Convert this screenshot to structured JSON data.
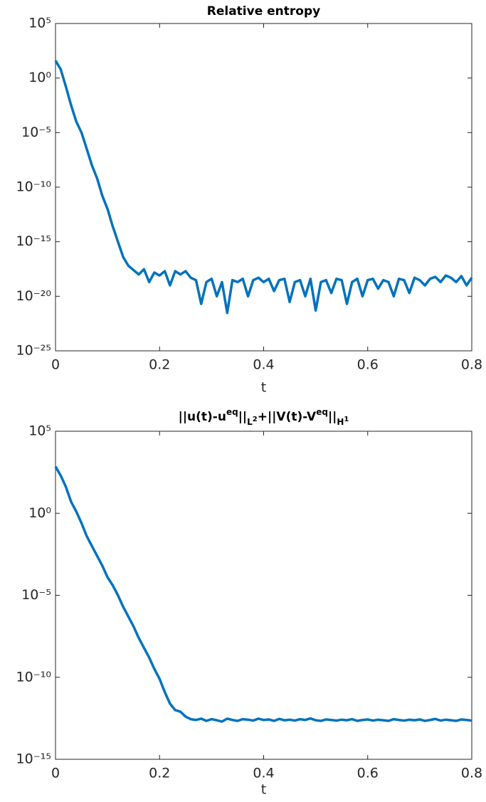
{
  "chart_data": [
    {
      "type": "line",
      "title": [
        "Relative entropy"
      ],
      "xlabel": "t",
      "ylog": true,
      "xlim": [
        0,
        0.8
      ],
      "xticks": [
        0,
        0.2,
        0.4,
        0.6,
        0.8
      ],
      "ylim": [
        1e-25,
        100000.0
      ],
      "yticks": [
        {
          "value": 1e-25,
          "label": "10⁻²⁵"
        },
        {
          "value": 1e-20,
          "label": "10⁻²⁰"
        },
        {
          "value": 1e-15,
          "label": "10⁻¹⁵"
        },
        {
          "value": 1e-10,
          "label": "10⁻¹⁰"
        },
        {
          "value": 1e-05,
          "label": "10⁻⁵"
        },
        {
          "value": 1,
          "label": "10⁰"
        },
        {
          "value": 100000.0,
          "label": "10⁵"
        }
      ],
      "series": [
        {
          "color": "#0072BD",
          "x": [
            0,
            0.01,
            0.02,
            0.03,
            0.04,
            0.05,
            0.06,
            0.07,
            0.08,
            0.09,
            0.1,
            0.11,
            0.12,
            0.13,
            0.14,
            0.15,
            0.16,
            0.17,
            0.18,
            0.19,
            0.2,
            0.21,
            0.22,
            0.23,
            0.24,
            0.25,
            0.26,
            0.27,
            0.28,
            0.29,
            0.3,
            0.31,
            0.32,
            0.33,
            0.34,
            0.35,
            0.36,
            0.37,
            0.38,
            0.39,
            0.4,
            0.41,
            0.42,
            0.43,
            0.44,
            0.45,
            0.46,
            0.47,
            0.48,
            0.49,
            0.5,
            0.51,
            0.52,
            0.53,
            0.54,
            0.55,
            0.56,
            0.57,
            0.58,
            0.59,
            0.6,
            0.61,
            0.62,
            0.63,
            0.64,
            0.65,
            0.66,
            0.67,
            0.68,
            0.69,
            0.7,
            0.71,
            0.72,
            0.73,
            0.74,
            0.75,
            0.76,
            0.77,
            0.78,
            0.79,
            0.8
          ],
          "values": [
            40,
            6.3,
            0.16,
            0.0032,
            0.0001,
            1e-05,
            3.2e-07,
            1e-08,
            6.3e-10,
            1.6e-11,
            1e-12,
            2.5e-14,
            1e-15,
            4e-17,
            6.3e-18,
            2.5e-18,
            1e-18,
            3e-18,
            2e-19,
            1.5e-18,
            8e-19,
            2e-18,
            1e-19,
            2e-18,
            1e-18,
            2e-18,
            5e-19,
            3e-19,
            2e-21,
            2e-19,
            4e-19,
            1e-20,
            2e-19,
            3e-22,
            3e-19,
            2e-19,
            4e-19,
            1e-20,
            3e-19,
            5e-19,
            2e-19,
            4e-19,
            3e-20,
            3e-19,
            4e-19,
            3e-21,
            2e-19,
            3e-19,
            1e-20,
            4e-19,
            5e-22,
            2e-19,
            3e-19,
            2e-20,
            4e-19,
            3e-19,
            2e-21,
            2e-19,
            4e-19,
            1e-20,
            3e-19,
            4e-19,
            5e-20,
            3e-19,
            2e-19,
            1e-20,
            4e-19,
            3e-19,
            2e-20,
            5e-19,
            3e-19,
            1e-19,
            4e-19,
            6e-19,
            2e-19,
            8e-19,
            5e-19,
            2e-19,
            7e-19,
            1e-19,
            5e-19
          ]
        }
      ]
    },
    {
      "type": "line",
      "title": [
        "||u(t)-u",
        "eq",
        "||",
        "L",
        "2",
        "+||V(t)-V",
        "eq",
        "||",
        "H",
        "1"
      ],
      "xlabel": "t",
      "ylog": true,
      "xlim": [
        0,
        0.8
      ],
      "xticks": [
        0,
        0.2,
        0.4,
        0.6,
        0.8
      ],
      "ylim": [
        1e-15,
        100000.0
      ],
      "yticks": [
        {
          "value": 1e-15,
          "label": "10⁻¹⁵"
        },
        {
          "value": 1e-10,
          "label": "10⁻¹⁰"
        },
        {
          "value": 1e-05,
          "label": "10⁻⁵"
        },
        {
          "value": 1,
          "label": "10⁰"
        },
        {
          "value": 100000.0,
          "label": "10⁵"
        }
      ],
      "series": [
        {
          "color": "#0072BD",
          "x": [
            0,
            0.01,
            0.02,
            0.03,
            0.04,
            0.05,
            0.06,
            0.07,
            0.08,
            0.09,
            0.1,
            0.11,
            0.12,
            0.13,
            0.14,
            0.15,
            0.16,
            0.17,
            0.18,
            0.19,
            0.2,
            0.21,
            0.22,
            0.23,
            0.24,
            0.25,
            0.26,
            0.27,
            0.28,
            0.29,
            0.3,
            0.31,
            0.32,
            0.33,
            0.34,
            0.35,
            0.36,
            0.37,
            0.38,
            0.39,
            0.4,
            0.41,
            0.42,
            0.43,
            0.44,
            0.45,
            0.46,
            0.47,
            0.48,
            0.49,
            0.5,
            0.51,
            0.52,
            0.53,
            0.54,
            0.55,
            0.56,
            0.57,
            0.58,
            0.59,
            0.6,
            0.61,
            0.62,
            0.63,
            0.64,
            0.65,
            0.66,
            0.67,
            0.68,
            0.69,
            0.7,
            0.71,
            0.72,
            0.73,
            0.74,
            0.75,
            0.76,
            0.77,
            0.78,
            0.79,
            0.8
          ],
          "values": [
            700,
            200,
            40,
            5,
            1.26,
            0.25,
            0.04,
            0.01,
            0.0025,
            0.00063,
            0.000126,
            4e-05,
            1e-05,
            2e-06,
            5e-07,
            1.26e-07,
            2.5e-08,
            6.3e-09,
            1.6e-09,
            3.2e-10,
            8e-11,
            1.26e-11,
            2.5e-12,
            1e-12,
            8e-13,
            4e-13,
            2.8e-13,
            2.5e-13,
            3e-13,
            2.2e-13,
            2.8e-13,
            2.4e-13,
            2e-13,
            3e-13,
            2.5e-13,
            2.2e-13,
            2.8e-13,
            2.6e-13,
            2.3e-13,
            3e-13,
            2.5e-13,
            2.7e-13,
            2.2e-13,
            2.9e-13,
            2.4e-13,
            2.6e-13,
            2.3e-13,
            2.8e-13,
            2.5e-13,
            3.1e-13,
            2.4e-13,
            2.2e-13,
            2.7e-13,
            2.5e-13,
            2.3e-13,
            2.6e-13,
            2.4e-13,
            2.8e-13,
            2.2e-13,
            2.5e-13,
            2.7e-13,
            2.3e-13,
            2.6e-13,
            2.4e-13,
            2.2e-13,
            2.8e-13,
            2.5e-13,
            2.3e-13,
            2.6e-13,
            2.4e-13,
            2.7e-13,
            2.2e-13,
            2.5e-13,
            2.9e-13,
            2.3e-13,
            2.6e-13,
            2.4e-13,
            2.2e-13,
            2.7e-13,
            2.5e-13,
            2.3e-13
          ]
        }
      ]
    }
  ]
}
